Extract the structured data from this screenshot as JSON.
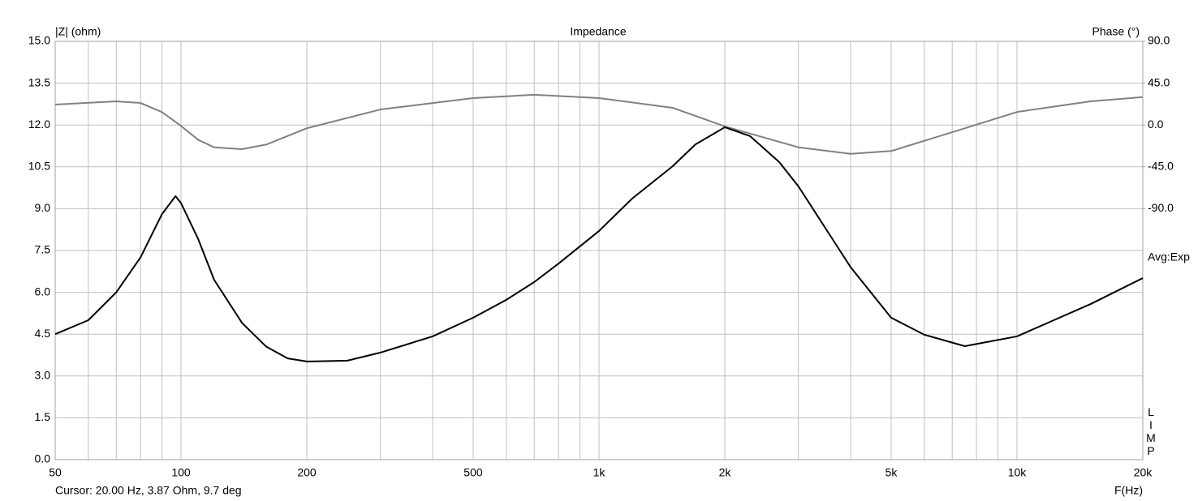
{
  "chart_data": {
    "type": "line",
    "title": "Impedance",
    "y_label": "|Z| (ohm)",
    "y2_label": "Phase (°)",
    "x_label": "F(Hz)",
    "side_note": "Avg:Exp",
    "mode_label": "LIMP",
    "cursor_text": "Cursor: 20.00 Hz, 3.87 Ohm, 9.7 deg",
    "x_log": true,
    "grid": true,
    "xlim": [
      50,
      20000
    ],
    "xticks": [
      50,
      100,
      200,
      500,
      {
        "value": 1000,
        "label": "1k"
      },
      {
        "value": 2000,
        "label": "2k"
      },
      {
        "value": 5000,
        "label": "5k"
      },
      {
        "value": 10000,
        "label": "10k"
      },
      {
        "value": 20000,
        "label": "20k"
      }
    ],
    "x_minor_ticks": [
      60,
      70,
      80,
      90,
      300,
      400,
      600,
      700,
      800,
      900,
      3000,
      4000,
      6000,
      7000,
      8000,
      9000
    ],
    "ylim": [
      0,
      15
    ],
    "yticks": [
      {
        "value": 0,
        "label": "0.0"
      },
      {
        "value": 1.5,
        "label": "1.5"
      },
      {
        "value": 3,
        "label": "3.0"
      },
      {
        "value": 4.5,
        "label": "4.5"
      },
      {
        "value": 6,
        "label": "6.0"
      },
      {
        "value": 7.5,
        "label": "7.5"
      },
      {
        "value": 9,
        "label": "9.0"
      },
      {
        "value": 10.5,
        "label": "10.5"
      },
      {
        "value": 12,
        "label": "12.0"
      },
      {
        "value": 13.5,
        "label": "13.5"
      },
      {
        "value": 15,
        "label": "15.0"
      }
    ],
    "y2lim": [
      -360,
      90
    ],
    "y2ticks": [
      {
        "value": 90,
        "label": "90.0"
      },
      {
        "value": 45,
        "label": "45.0"
      },
      {
        "value": 0,
        "label": "0.0"
      },
      {
        "value": -45,
        "label": "-45.0"
      },
      {
        "value": -90,
        "label": "-90.0"
      }
    ],
    "series": [
      {
        "name": "Impedance",
        "color": "#000000",
        "x": [
          50,
          60,
          70,
          80,
          90,
          97,
          100,
          110,
          120,
          140,
          160,
          180,
          200,
          250,
          300,
          400,
          500,
          600,
          700,
          800,
          1000,
          1200,
          1500,
          1700,
          2000,
          2300,
          2700,
          3000,
          4000,
          5000,
          6000,
          7500,
          10000,
          15000,
          20000
        ],
        "values": [
          4.5,
          5.0,
          6.0,
          7.25,
          8.8,
          9.45,
          9.2,
          7.9,
          6.45,
          4.9,
          4.05,
          3.63,
          3.52,
          3.55,
          3.84,
          4.42,
          5.09,
          5.73,
          6.37,
          7.03,
          8.2,
          9.36,
          10.52,
          11.3,
          11.92,
          11.6,
          10.67,
          9.8,
          6.9,
          5.09,
          4.48,
          4.07,
          4.42,
          5.58,
          6.51
        ]
      },
      {
        "name": "Phase",
        "color": "#808080",
        "axis": "y2",
        "x": [
          50,
          70,
          80,
          90,
          100,
          110,
          120,
          140,
          160,
          200,
          300,
          500,
          700,
          1000,
          1500,
          2000,
          3000,
          4000,
          5000,
          7000,
          10000,
          15000,
          20000
        ],
        "values": [
          22,
          25.5,
          23.7,
          14,
          -1,
          -16,
          -24,
          -26,
          -21,
          -3.5,
          16.7,
          29,
          32.5,
          29,
          18.5,
          -1.5,
          -24,
          -31,
          -28,
          -7.7,
          14,
          25.5,
          30
        ]
      }
    ]
  }
}
